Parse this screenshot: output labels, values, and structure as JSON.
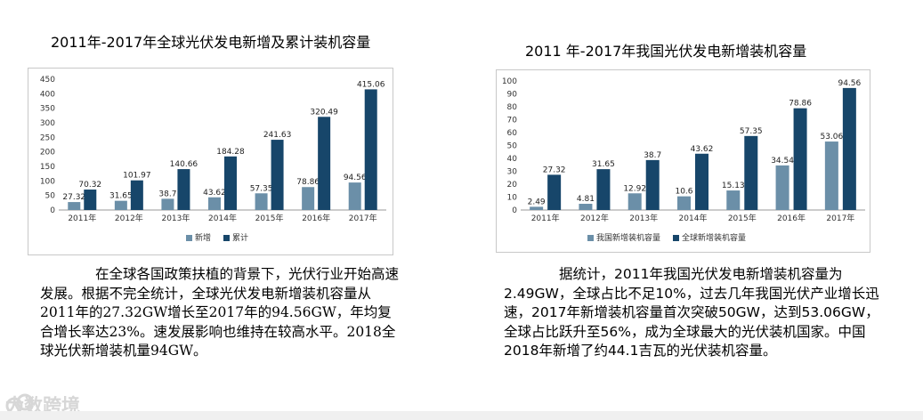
{
  "chart_data": [
    {
      "type": "bar",
      "title": "2011年-2017年全球光伏发电新增及累计装机容量",
      "categories": [
        "2011年",
        "2012年",
        "2013年",
        "2014年",
        "2015年",
        "2016年",
        "2017年"
      ],
      "series": [
        {
          "name": "新增",
          "values": [
            27.32,
            31.65,
            38.7,
            43.62,
            57.35,
            78.86,
            94.56
          ],
          "labels": [
            "27.32",
            "31.65",
            "38.7",
            "43.62",
            "57.35",
            "78.86",
            "94.56"
          ]
        },
        {
          "name": "累计",
          "values": [
            70.32,
            101.97,
            140.66,
            184.28,
            241.63,
            320.49,
            415.06
          ],
          "labels": [
            "70.32",
            "101.97",
            "140.66",
            "184.28",
            "241.63",
            "320.49",
            "415.06"
          ]
        }
      ],
      "ylim": [
        0,
        450
      ],
      "yticks": [
        0,
        50,
        100,
        150,
        200,
        250,
        300,
        350,
        400,
        450
      ],
      "grid": false,
      "legend": "bottom",
      "colors": [
        "#6b8fa8",
        "#17466a"
      ]
    },
    {
      "type": "bar",
      "title": "2011 年-2017年我国光伏发电新增装机容量",
      "categories": [
        "2011年",
        "2012年",
        "2013年",
        "2014年",
        "2015年",
        "2016年",
        "2017年"
      ],
      "series": [
        {
          "name": "我国新增装机容量",
          "values": [
            2.49,
            4.81,
            12.92,
            10.6,
            15.13,
            34.54,
            53.06
          ],
          "labels": [
            "2.49",
            "4.81",
            "12.92",
            "10.6",
            "15.13",
            "34.54",
            "53.06"
          ]
        },
        {
          "name": "全球新增装机容量",
          "values": [
            27.32,
            31.65,
            38.7,
            43.62,
            57.35,
            78.86,
            94.56
          ],
          "labels": [
            "27.32",
            "31.65",
            "38.7",
            "43.62",
            "57.35",
            "78.86",
            "94.56"
          ]
        }
      ],
      "ylim": [
        0,
        100
      ],
      "yticks": [
        0,
        10,
        20,
        30,
        40,
        50,
        60,
        70,
        80,
        90,
        100
      ],
      "grid": false,
      "legend": "bottom",
      "colors": [
        "#6b8fa8",
        "#17466a"
      ]
    }
  ],
  "text": {
    "para1": "在全球各国政策扶植的背景下，光伏行业开始高速发展。根据不完全统计，全球光伏发电新增装机容量从2011年的27.32GW增长至2017年的94.56GW，年均复合增长率达23%。速发展影响也维持在较高水平。2018全球光伏新增装机量94GW。",
    "para2": "据统计，2011年我国光伏发电新增装机容量为2.49GW，全球占比不足10%，过去几年我国光伏产业增长迅速，2017年新增装机容量首次突破50GW，达到53.06GW，全球占比跃升至56%，成为全球最大的光伏装机国家。中国2018年新增了约44.1吉瓦的光伏装机容量。",
    "watermark": "大数跨境"
  }
}
